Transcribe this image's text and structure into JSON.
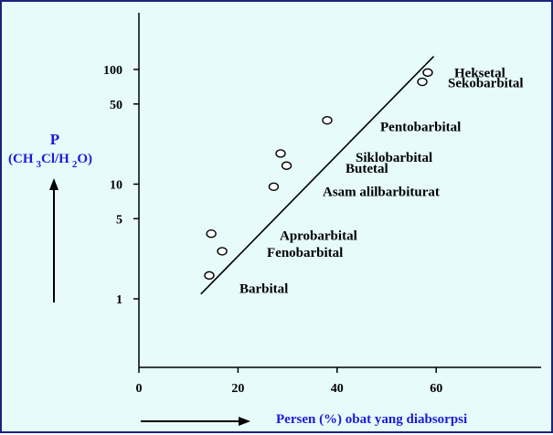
{
  "chart_data": {
    "type": "scatter",
    "title": "",
    "ylabel": {
      "symbol": "P",
      "solvent": {
        "a": "(CH",
        "b": "3",
        "c": "Cl/H",
        "d": "2",
        "e": "O)"
      }
    },
    "xlabel": "Persen (%) obat yang diabsorpsi",
    "y_scale": "log",
    "x_ticks": [
      "0",
      "20",
      "40",
      "60"
    ],
    "y_ticks": [
      "1",
      "5",
      "10",
      "50",
      "100"
    ],
    "points": [
      {
        "x": 58.3,
        "y": 94
      },
      {
        "x": 57.2,
        "y": 78
      },
      {
        "x": 38.0,
        "y": 36
      },
      {
        "x": 28.6,
        "y": 18.5
      },
      {
        "x": 29.8,
        "y": 14.5
      },
      {
        "x": 27.2,
        "y": 9.5
      },
      {
        "x": 14.6,
        "y": 3.7
      },
      {
        "x": 16.8,
        "y": 2.6
      },
      {
        "x": 14.2,
        "y": 1.6
      }
    ],
    "compound_labels": [
      {
        "text": "Heksetal",
        "y": 94
      },
      {
        "text": "Sekobarbital",
        "y": 78
      },
      {
        "text": "Pentobarbital",
        "y": 36
      },
      {
        "text": "Siklobarbital",
        "y": 18.5
      },
      {
        "text": "Butetal",
        "y": 14.5
      },
      {
        "text": "Asam alilbarbiturat",
        "y": 9.5
      },
      {
        "text": "Aprobarbital",
        "y": 3.7
      },
      {
        "text": "Fenobarbital",
        "y": 2.6
      },
      {
        "text": "Barbital",
        "y": 1.6
      }
    ],
    "trend_line": {
      "x": [
        12.5,
        59.5
      ],
      "y": [
        1.1,
        130
      ]
    },
    "grid": false,
    "legend": "none",
    "colors": {
      "background": "#e6fbfa",
      "frame": "#1a237e",
      "axis_text": "#1b1bd9"
    }
  }
}
